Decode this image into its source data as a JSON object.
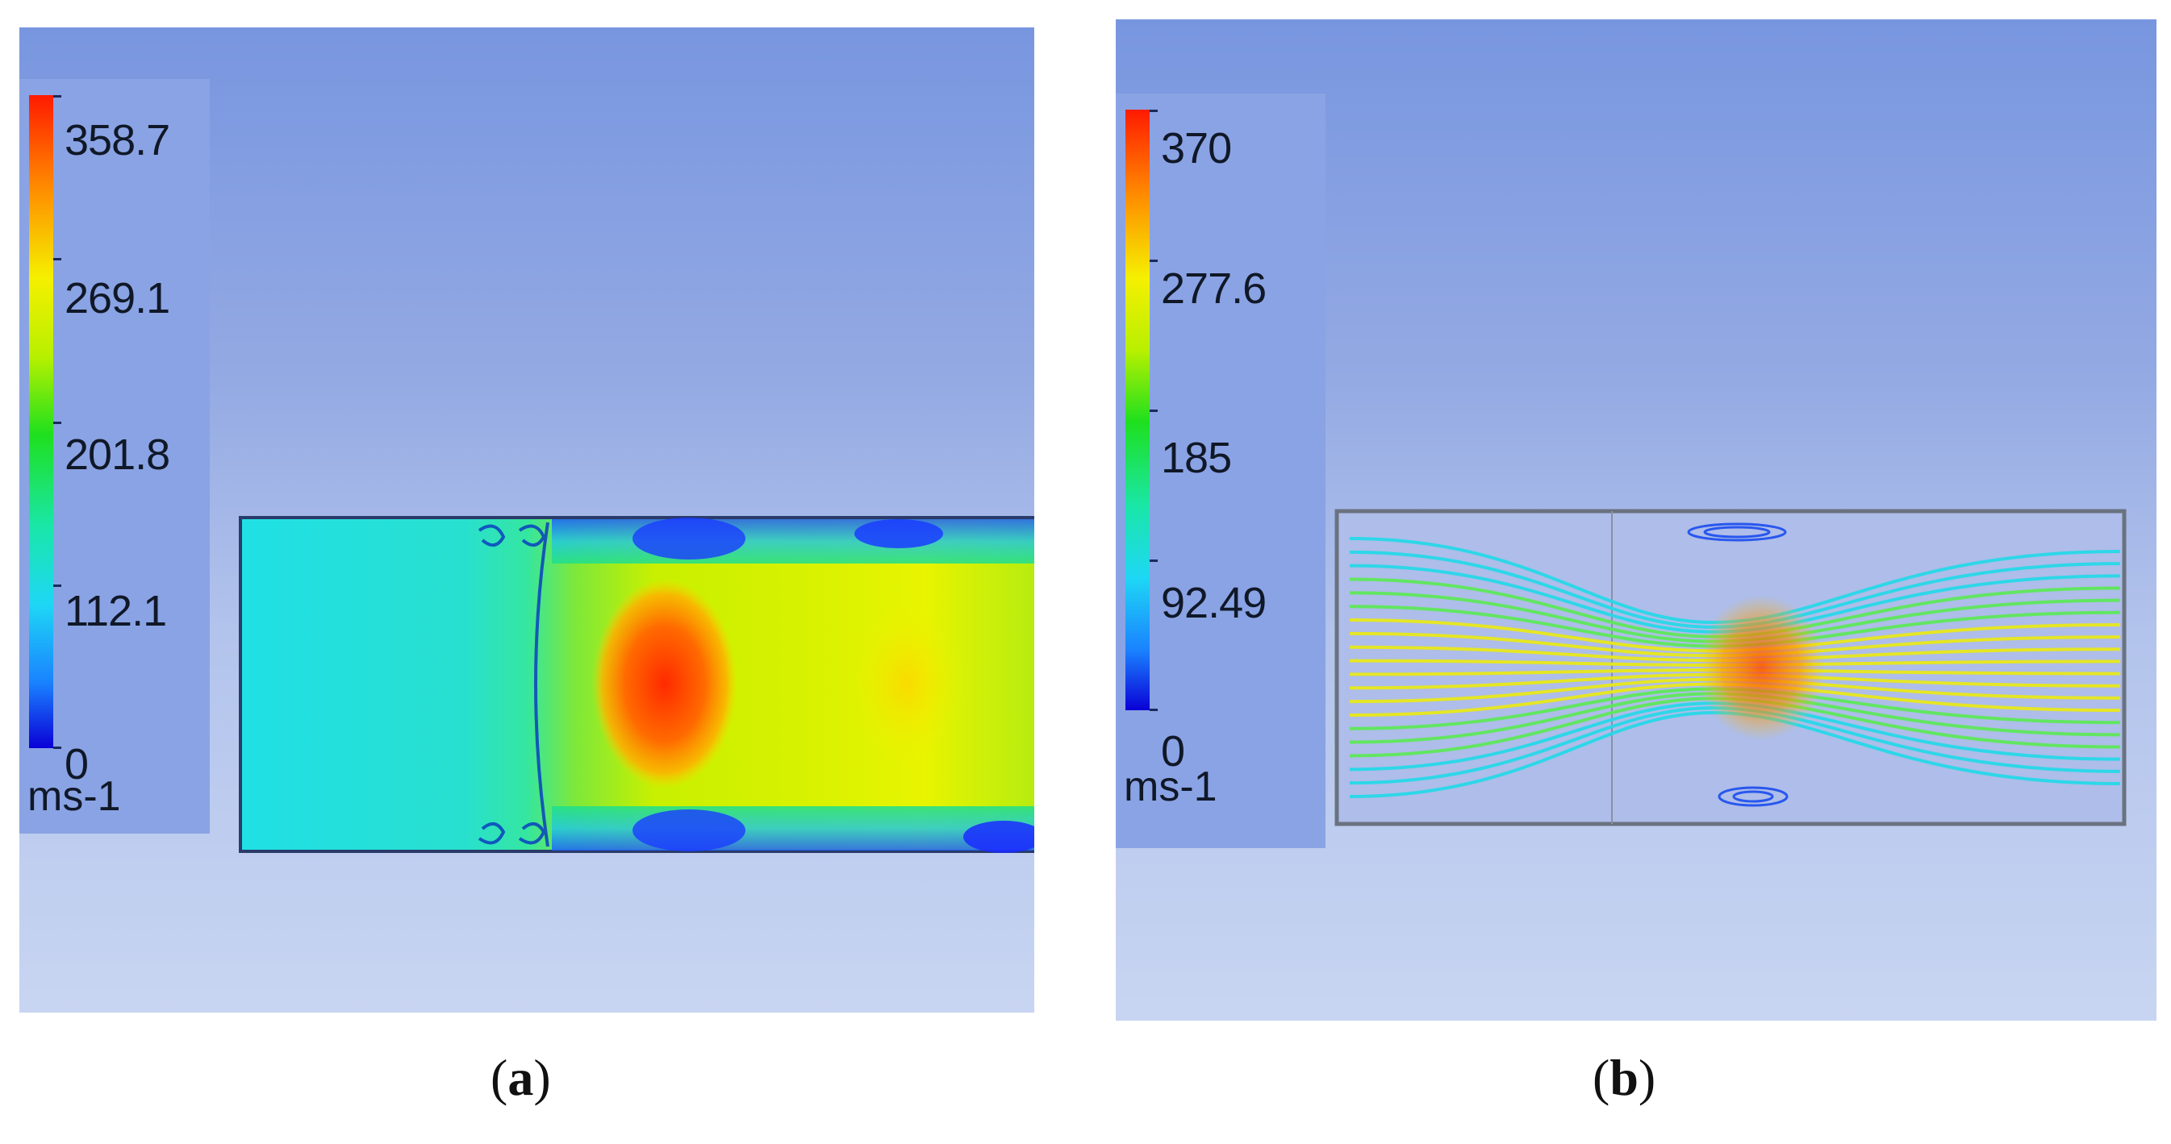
{
  "panels": [
    {
      "id": "a",
      "legend": {
        "ticks": [
          "358.7",
          "269.1",
          "201.8",
          "112.1",
          "0"
        ],
        "unit": "ms-1"
      },
      "caption": {
        "open": "(",
        "letter": "a",
        "close": ")"
      }
    },
    {
      "id": "b",
      "legend": {
        "ticks": [
          "370",
          "277.6",
          "185",
          "92.49",
          "0"
        ],
        "unit": "ms-1"
      },
      "caption": {
        "open": "(",
        "letter": "b",
        "close": ")"
      }
    }
  ]
}
